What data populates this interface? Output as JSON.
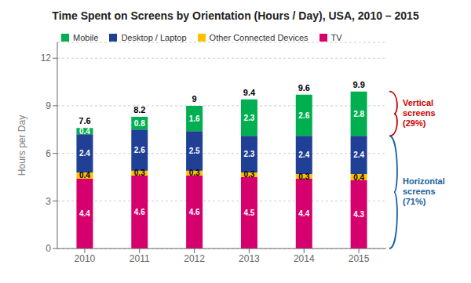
{
  "chart_data": {
    "type": "bar",
    "title": "Time Spent on Screens by Orientation (Hours / Day), USA, 2010 – 2015",
    "y_label": "Hours per Day",
    "categories": [
      "2010",
      "2011",
      "2012",
      "2013",
      "2014",
      "2015"
    ],
    "series": [
      {
        "name": "TV",
        "color": "#D5006D",
        "values": [
          4.4,
          4.6,
          4.6,
          4.5,
          4.4,
          4.3
        ]
      },
      {
        "name": "Other Connected Devices",
        "color": "#FFC000",
        "values": [
          0.4,
          0.3,
          0.3,
          0.3,
          0.3,
          0.4
        ]
      },
      {
        "name": "Desktop / Laptop",
        "color": "#1F4095",
        "values": [
          2.4,
          2.6,
          2.5,
          2.3,
          2.4,
          2.4
        ]
      },
      {
        "name": "Mobile",
        "color": "#00B050",
        "values": [
          0.4,
          0.8,
          1.6,
          2.3,
          2.6,
          2.8
        ]
      }
    ],
    "totals": [
      7.6,
      8.2,
      9.0,
      9.4,
      9.6,
      9.9
    ],
    "ylim": [
      0,
      13
    ],
    "yticks": [
      0,
      3,
      6,
      9,
      12
    ],
    "stacked": true,
    "data_labels": true,
    "grid": true,
    "legend": "upper left",
    "annotations": [
      {
        "text": "Vertical\nscreens\n(29%)",
        "color": "#CC0000",
        "y_bottom": 7.1,
        "y_top": 9.9
      },
      {
        "text": "Horizontal\nscreens\n(71%)",
        "color": "#2060A0",
        "y_bottom": 0.0,
        "y_top": 7.1
      }
    ]
  }
}
